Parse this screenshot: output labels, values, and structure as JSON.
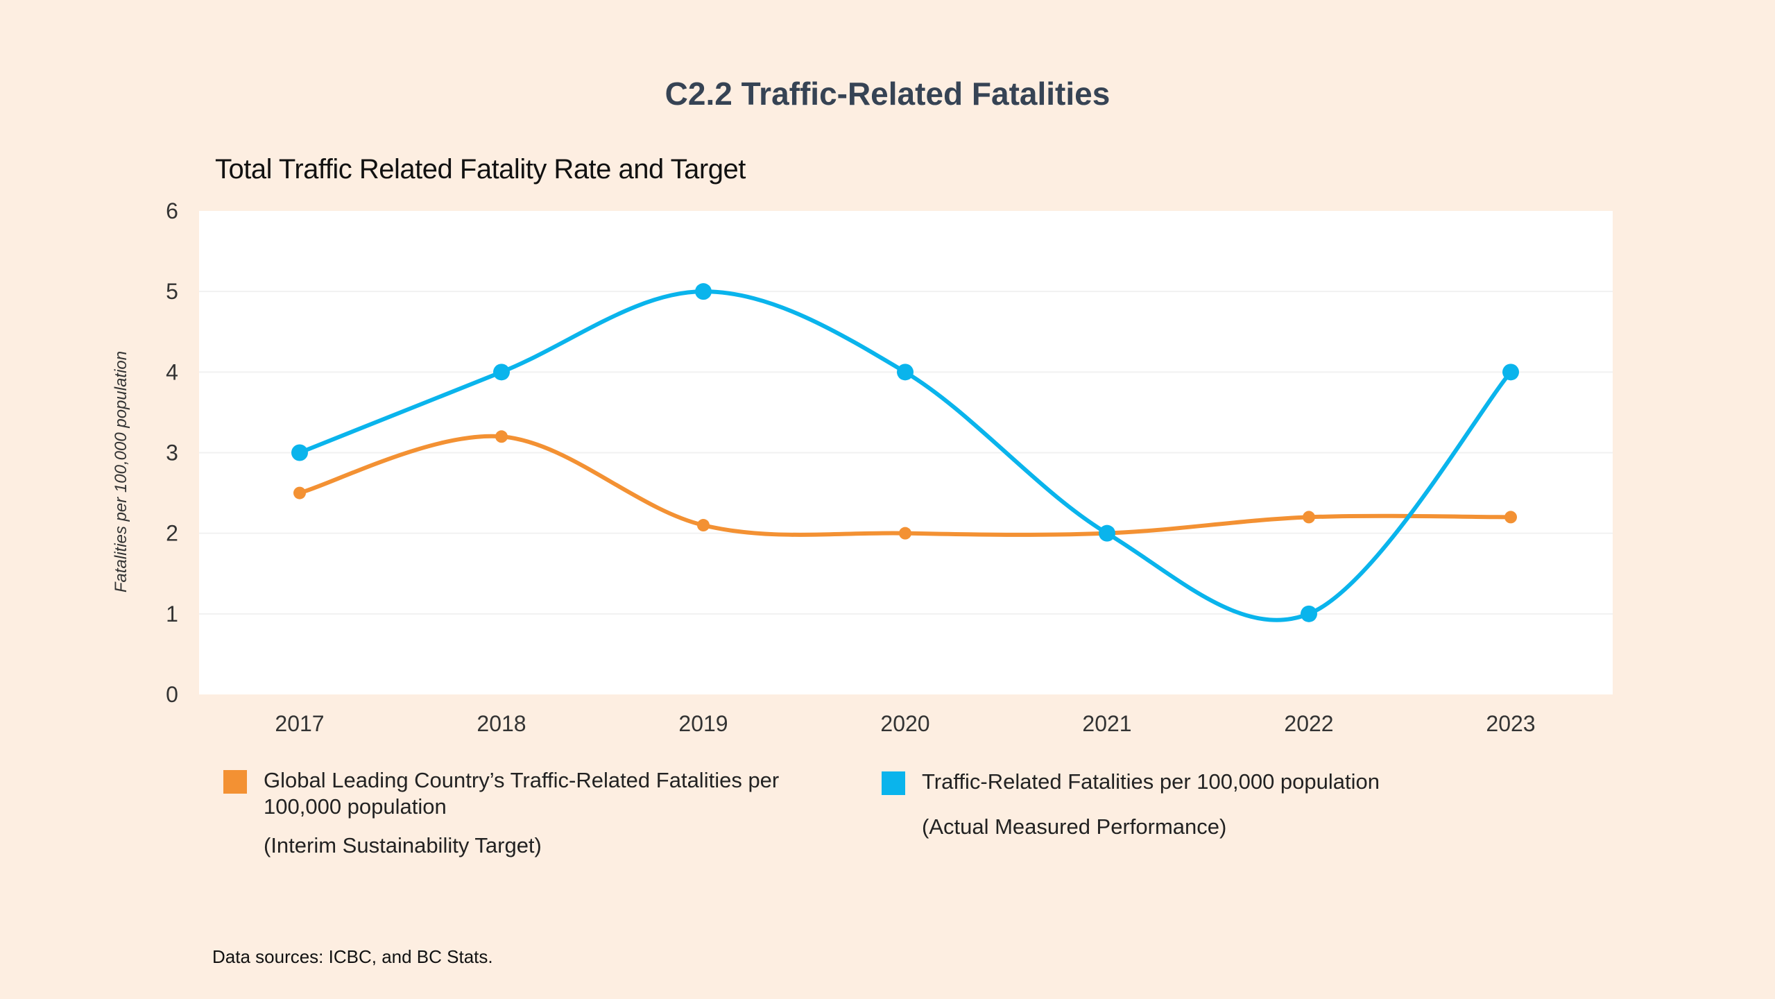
{
  "title": "C2.2 Traffic-Related Fatalities",
  "subtitle": "Total Traffic Related Fatality Rate and Target",
  "source": "Data sources: ICBC, and BC Stats.",
  "colors": {
    "background": "#fdeee1",
    "plot_background": "#ffffff",
    "target": "#f39133",
    "actual": "#0ab4ec",
    "title": "#364354"
  },
  "legend": [
    {
      "label": "Global Leading Country’s Traffic-Related Fatalities per 100,000 population",
      "note": "(Interim Sustainability Target)",
      "color": "#f39133"
    },
    {
      "label": "Traffic-Related Fatalities per 100,000 population",
      "note": "(Actual Measured Performance)",
      "color": "#0ab4ec"
    }
  ],
  "chart_data": {
    "type": "line",
    "title": "Total Traffic Related Fatality Rate and Target",
    "xlabel": "",
    "ylabel": "Fatalities per 100,000 population",
    "categories": [
      "2017",
      "2018",
      "2019",
      "2020",
      "2021",
      "2022",
      "2023"
    ],
    "ylim": [
      0,
      6
    ],
    "yticks": [
      "0",
      "1",
      "2",
      "3",
      "4",
      "5",
      "6"
    ],
    "grid": true,
    "smooth": true,
    "legend_position": "bottom",
    "series": [
      {
        "name": "Global Leading Country’s Traffic-Related Fatalities per 100,000 population (Interim Sustainability Target)",
        "color": "#f39133",
        "values": [
          2.5,
          3.2,
          2.1,
          2.0,
          2.0,
          2.2,
          2.2
        ]
      },
      {
        "name": "Traffic-Related Fatalities per 100,000 population (Actual Measured Performance)",
        "color": "#0ab4ec",
        "values": [
          3,
          4,
          5,
          4,
          2,
          1,
          4
        ]
      }
    ]
  }
}
